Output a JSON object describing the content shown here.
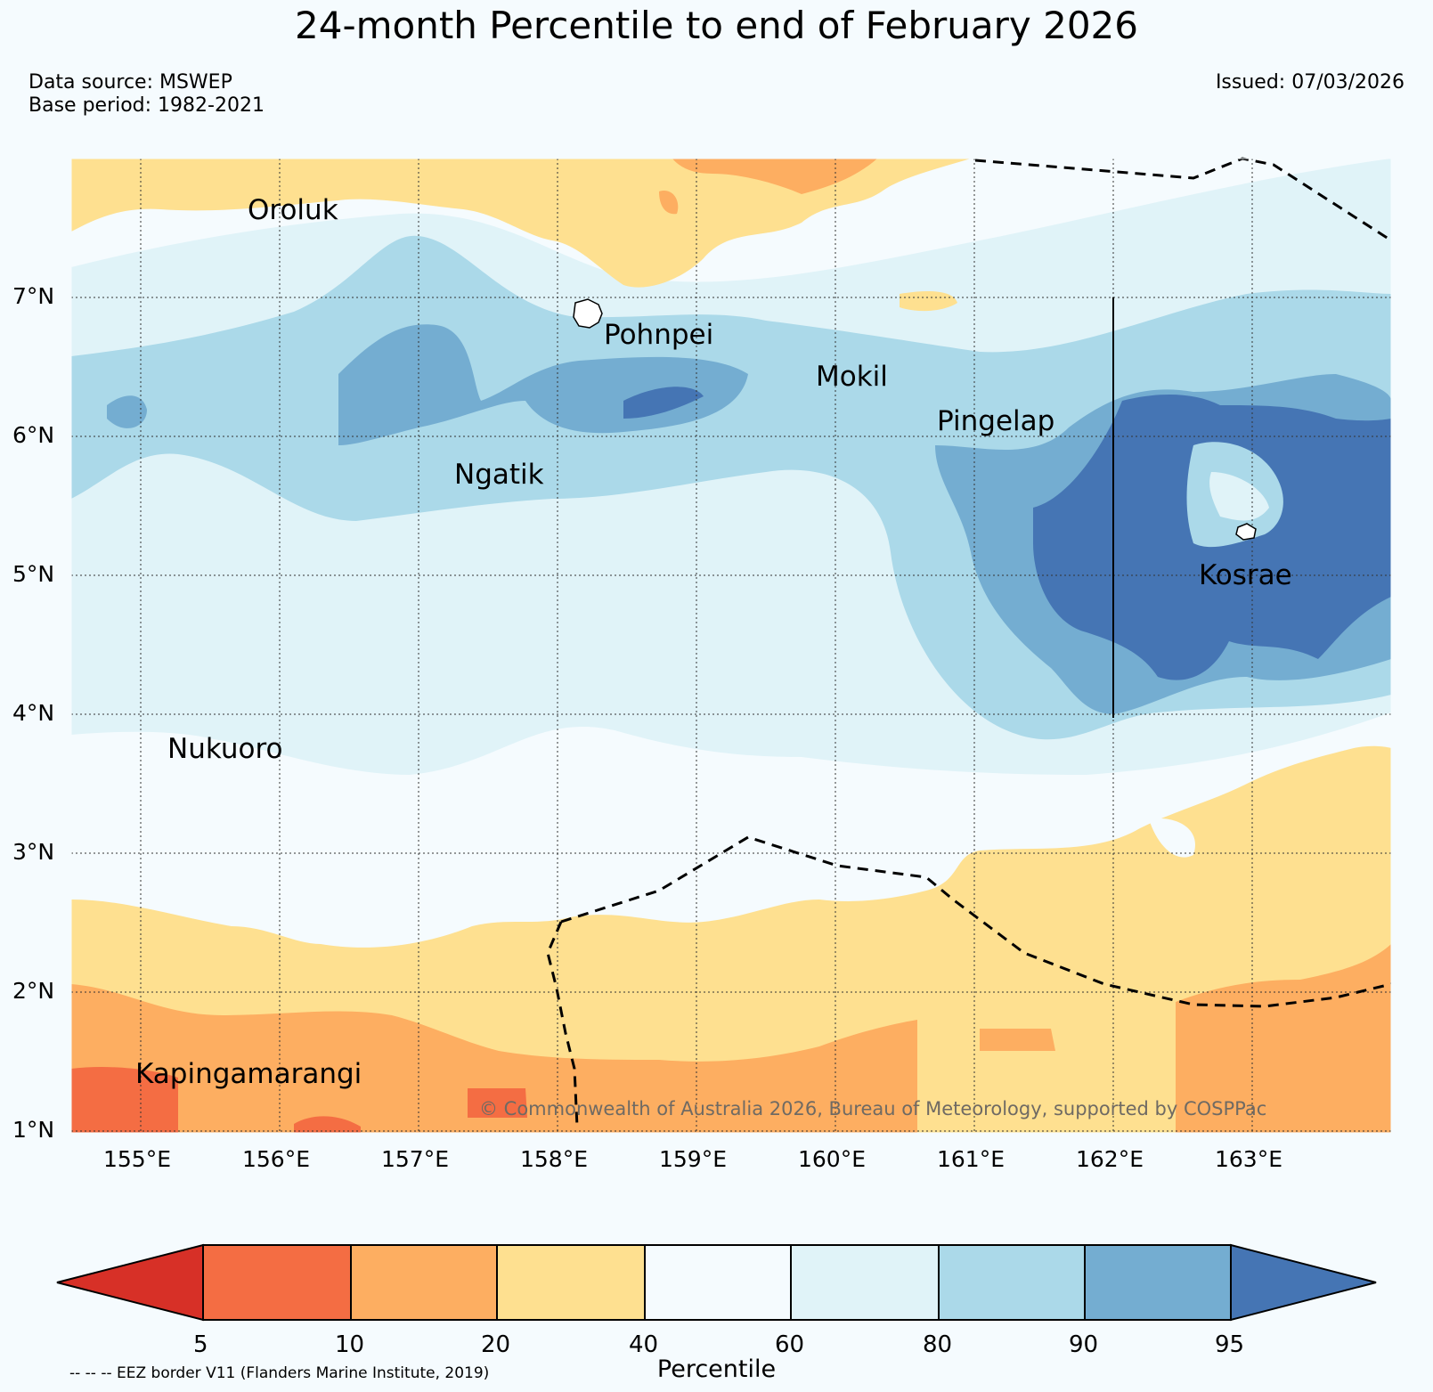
{
  "header": {
    "title": "24-month Percentile to end of February 2026",
    "data_source": "Data source: MSWEP",
    "base_period": "Base period: 1982-2021",
    "issued": "Issued: 07/03/2026"
  },
  "map": {
    "lon_range": [
      154.5,
      164.0
    ],
    "lat_range": [
      1.0,
      8.0
    ],
    "lat_labels": [
      "7°N",
      "6°N",
      "5°N",
      "4°N",
      "3°N",
      "2°N",
      "1°N"
    ],
    "lon_labels": [
      "155°E",
      "156°E",
      "157°E",
      "158°E",
      "159°E",
      "160°E",
      "161°E",
      "162°E",
      "163°E"
    ],
    "places": [
      {
        "name": "Oroluk",
        "lon": 155.75,
        "lat": 7.62
      },
      {
        "name": "Pohnpei",
        "lon": 158.33,
        "lat": 6.78
      },
      {
        "name": "Mokil",
        "lon": 159.82,
        "lat": 6.45
      },
      {
        "name": "Pingelap",
        "lon": 160.72,
        "lat": 6.13
      },
      {
        "name": "Ngatik",
        "lon": 157.2,
        "lat": 5.8
      },
      {
        "name": "Kosrae",
        "lon": 162.98,
        "lat": 5.32
      },
      {
        "name": "Nukuoro",
        "lon": 154.95,
        "lat": 3.85
      },
      {
        "name": "Kapingamarangi",
        "lon": 154.95,
        "lat": 1.45
      }
    ],
    "copyright": "© Commonwealth of Australia 2026, Bureau of Meteorology, supported by COSPPac"
  },
  "colorbar": {
    "label": "Percentile",
    "ticks": [
      "5",
      "10",
      "20",
      "40",
      "60",
      "80",
      "90",
      "95"
    ],
    "colors": [
      "#d73027",
      "#f46d43",
      "#fdae61",
      "#fee090",
      "#f5fbfe",
      "#e0f3f8",
      "#abd9e9",
      "#74add1",
      "#4575b4"
    ],
    "eez_note": "-- -- -- EEZ border V11 (Flanders Marine Institute, 2019)"
  }
}
